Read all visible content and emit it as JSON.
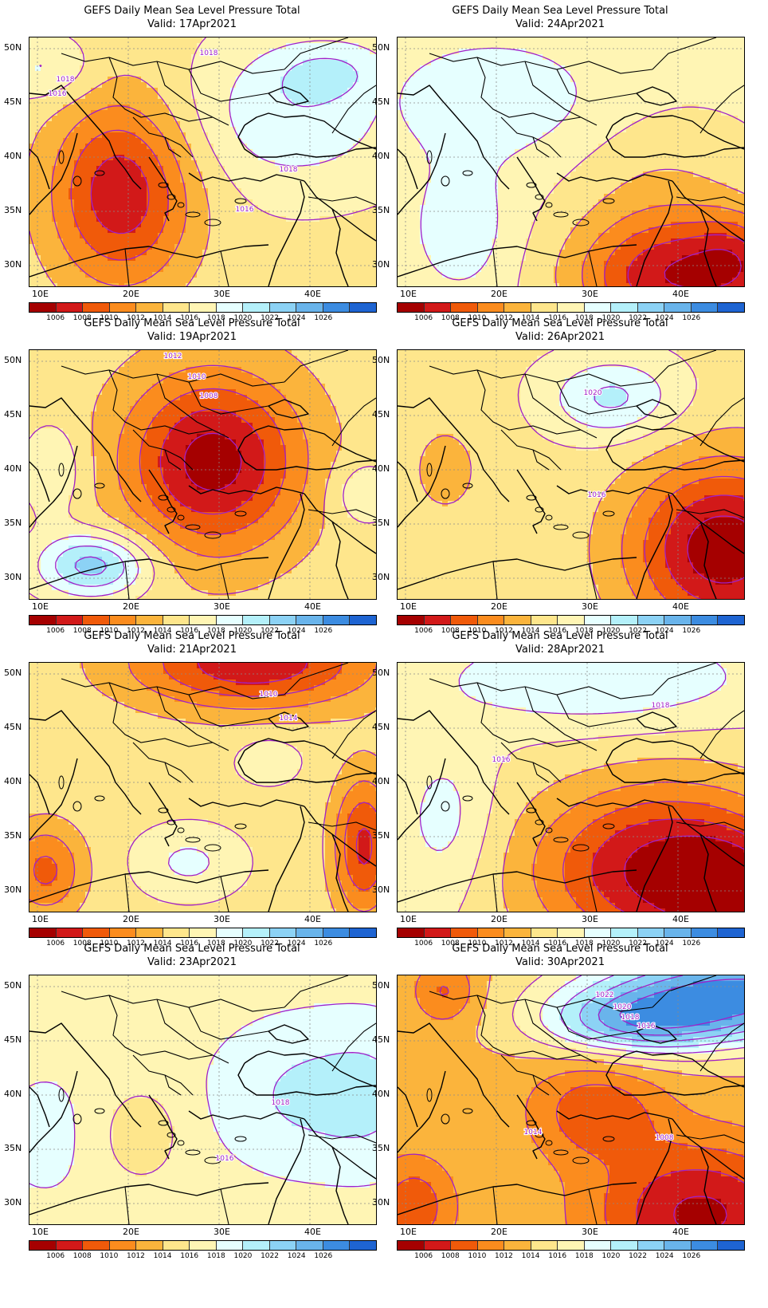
{
  "figure": {
    "colorbar": {
      "colors": [
        "#a50000",
        "#d21919",
        "#f05a0a",
        "#fb8c1e",
        "#fbb43c",
        "#fee68c",
        "#fff5b4",
        "#e6ffff",
        "#b4f0fa",
        "#8cd2f5",
        "#69b4eb",
        "#3c8ce1",
        "#1e64d2"
      ],
      "labels": [
        "1006",
        "1008",
        "1010",
        "1012",
        "1014",
        "1016",
        "1018",
        "1020",
        "1022",
        "1024",
        "1026"
      ]
    },
    "x_ticks": [
      "10E",
      "20E",
      "30E",
      "40E"
    ],
    "y_ticks": [
      "50N",
      "45N",
      "40N",
      "35N",
      "30N"
    ],
    "contour_color": "#a020c8",
    "grid_color": "#8a8a8a"
  },
  "panels": [
    {
      "title": "GEFS Daily Mean Sea Level Pressure Total",
      "valid": "Valid: 17Apr2021",
      "isobar_labels": [
        {
          "text": "1018"
        },
        {
          "text": "1018"
        },
        {
          "text": "1016"
        },
        {
          "text": "1018"
        },
        {
          "text": "1016"
        }
      ]
    },
    {
      "title": "GEFS Daily Mean Sea Level Pressure Total",
      "valid": "Valid: 24Apr2021",
      "isobar_labels": []
    },
    {
      "title": "GEFS Daily Mean Sea Level Pressure Total",
      "valid": "Valid: 19Apr2021",
      "isobar_labels": [
        {
          "text": "1012"
        },
        {
          "text": "1010"
        },
        {
          "text": "1008"
        }
      ]
    },
    {
      "title": "GEFS Daily Mean Sea Level Pressure Total",
      "valid": "Valid: 26Apr2021",
      "isobar_labels": [
        {
          "text": "1020"
        },
        {
          "text": "1016"
        }
      ]
    },
    {
      "title": "GEFS Daily Mean Sea Level Pressure Total",
      "valid": "Valid: 21Apr2021",
      "isobar_labels": [
        {
          "text": "1010"
        },
        {
          "text": "1014"
        }
      ]
    },
    {
      "title": "GEFS Daily Mean Sea Level Pressure Total",
      "valid": "Valid: 28Apr2021",
      "isobar_labels": [
        {
          "text": "1018"
        },
        {
          "text": "1016"
        }
      ]
    },
    {
      "title": "GEFS Daily Mean Sea Level Pressure Total",
      "valid": "Valid: 23Apr2021",
      "isobar_labels": [
        {
          "text": "1018"
        },
        {
          "text": "1016"
        }
      ]
    },
    {
      "title": "GEFS Daily Mean Sea Level Pressure Total",
      "valid": "Valid: 30Apr2021",
      "isobar_labels": [
        {
          "text": "1022"
        },
        {
          "text": "1020"
        },
        {
          "text": "1018"
        },
        {
          "text": "1016"
        },
        {
          "text": "1014"
        },
        {
          "text": "1008"
        }
      ]
    }
  ]
}
